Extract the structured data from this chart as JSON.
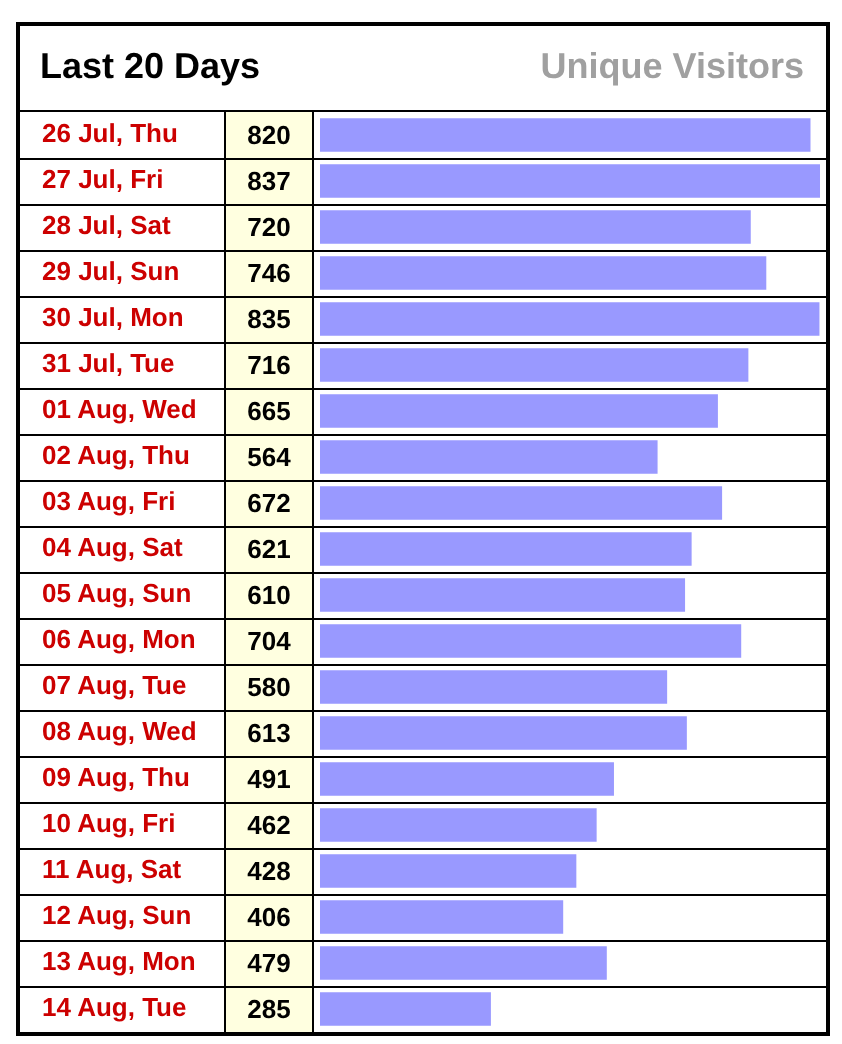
{
  "chart_data": {
    "type": "bar",
    "orientation": "horizontal",
    "title": "Last 20 Days",
    "subtitle": "Unique Visitors",
    "categories": [
      "26 Jul, Thu",
      "27 Jul, Fri",
      "28 Jul, Sat",
      "29 Jul, Sun",
      "30 Jul, Mon",
      "31 Jul, Tue",
      "01 Aug, Wed",
      "02 Aug, Thu",
      "03 Aug, Fri",
      "04 Aug, Sat",
      "05 Aug, Sun",
      "06 Aug, Mon",
      "07 Aug, Tue",
      "08 Aug, Wed",
      "09 Aug, Thu",
      "10 Aug, Fri",
      "11 Aug, Sat",
      "12 Aug, Sun",
      "13 Aug, Mon",
      "14 Aug, Tue"
    ],
    "values": [
      820,
      837,
      720,
      746,
      835,
      716,
      665,
      564,
      672,
      621,
      610,
      704,
      580,
      613,
      491,
      462,
      428,
      406,
      479,
      285
    ],
    "color": "#9999ff",
    "data_labels": true,
    "grid": "y",
    "tick_labels": "y"
  }
}
